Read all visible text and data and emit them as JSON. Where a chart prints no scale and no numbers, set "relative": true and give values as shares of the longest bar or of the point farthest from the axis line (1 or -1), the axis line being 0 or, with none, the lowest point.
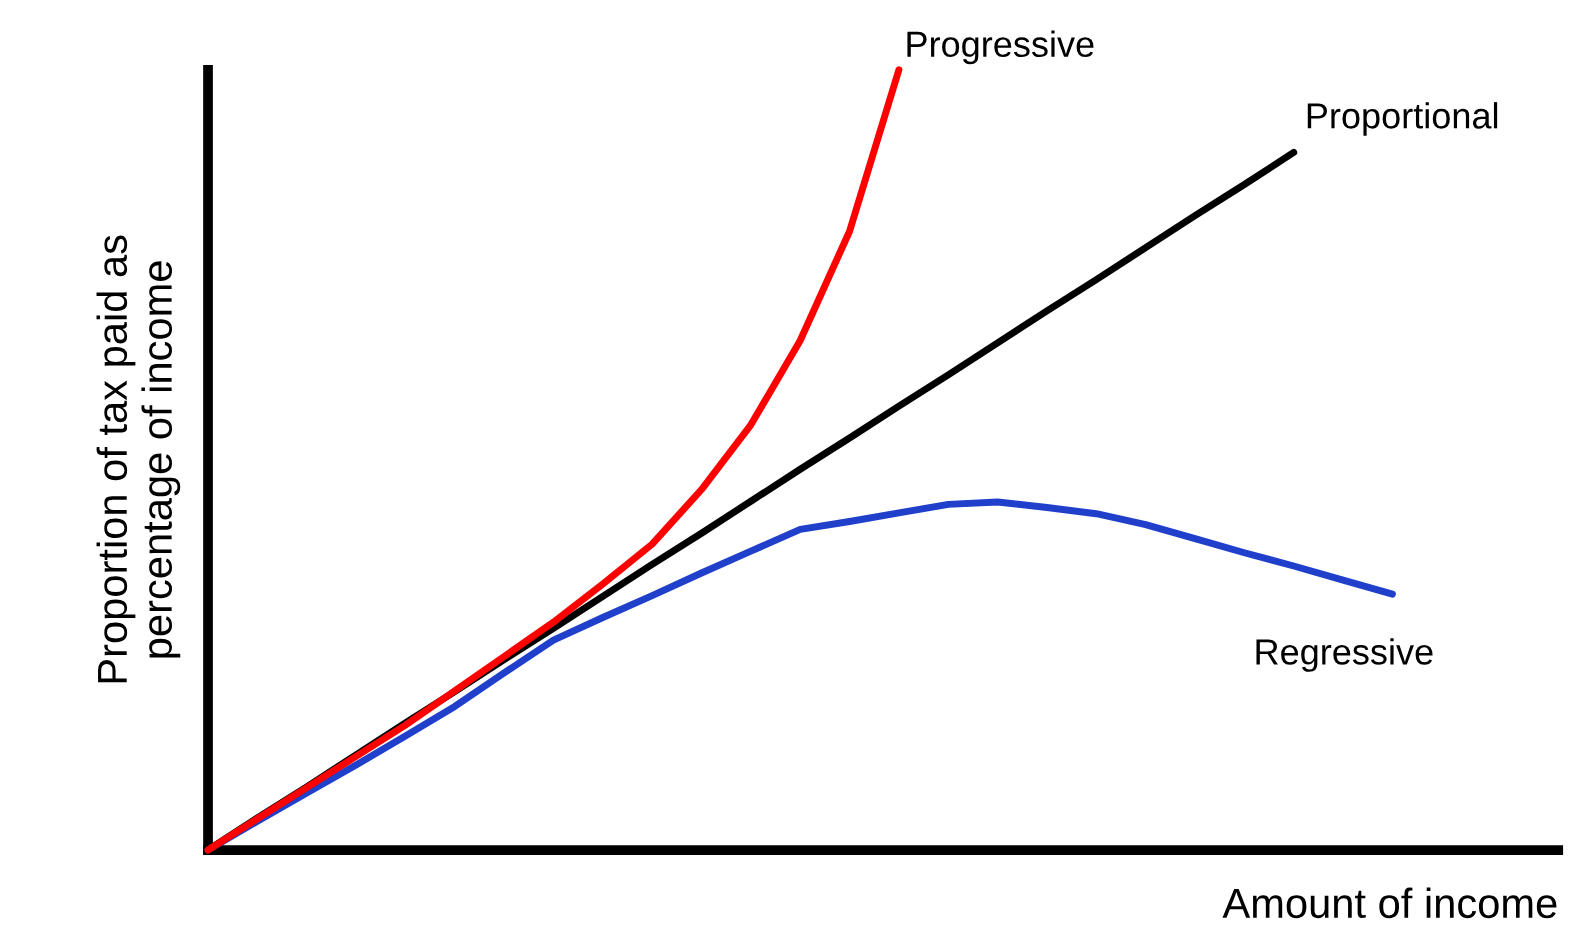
{
  "chart_data": {
    "type": "line",
    "relative": true,
    "xlabel": "Amount of income",
    "ylabel": "Proportion of tax paid as\npercentage of income",
    "legend": false,
    "marker": "none",
    "line_style": "solid",
    "categories": [
      null,
      null,
      null,
      null,
      null,
      null,
      null,
      null,
      null,
      null,
      null,
      null,
      null,
      null,
      null,
      null,
      null,
      null,
      null,
      null,
      null,
      null,
      null,
      null,
      null
    ],
    "series": [
      {
        "name": "Progressive",
        "color": "#ff0000",
        "values": [
          0,
          0.04,
          0.08,
          0.12,
          0.16,
          0.204,
          0.248,
          0.292,
          0.341,
          0.392,
          0.462,
          0.545,
          0.653,
          0.793,
          1,
          null,
          null,
          null,
          null,
          null,
          null,
          null,
          null,
          null,
          null
        ]
      },
      {
        "name": "Proportional",
        "color": "#000000",
        "values": [
          0,
          0.041,
          0.081,
          0.122,
          0.163,
          0.203,
          0.244,
          0.284,
          0.325,
          0.366,
          0.406,
          0.447,
          0.488,
          0.528,
          0.569,
          0.609,
          0.65,
          0.691,
          0.731,
          0.772,
          0.813,
          0.853,
          0.894,
          null,
          null
        ]
      },
      {
        "name": "Regressive",
        "color": "#2040cc",
        "values": [
          0,
          0.037,
          0.073,
          0.109,
          0.146,
          0.184,
          0.227,
          0.269,
          0.298,
          0.326,
          0.355,
          0.383,
          0.411,
          0.421,
          0.432,
          0.443,
          0.446,
          0.439,
          0.431,
          0.417,
          0.399,
          0.381,
          0.364,
          0.346,
          0.328
        ]
      }
    ]
  }
}
